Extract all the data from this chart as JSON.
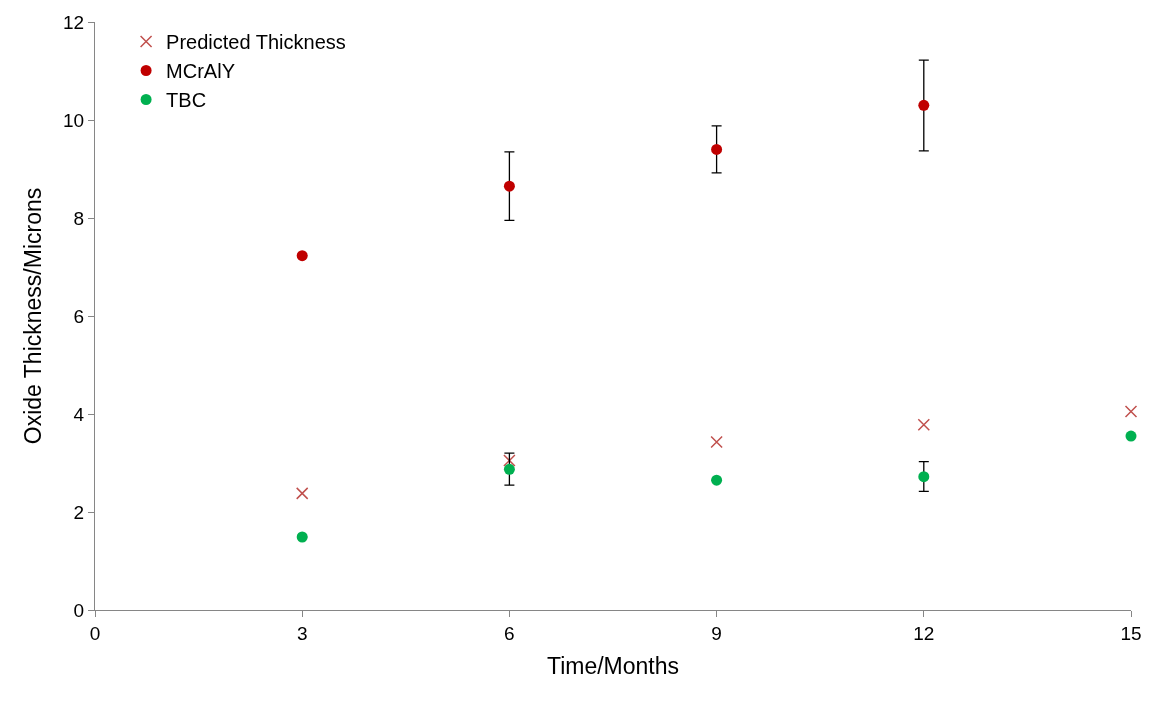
{
  "chart_data": {
    "type": "scatter",
    "xlabel": "Time/Months",
    "ylabel": "Oxide Thickness/Microns",
    "xlim": [
      0,
      15
    ],
    "xticks": [
      0,
      3,
      6,
      9,
      12,
      15
    ],
    "ylim": [
      0,
      12
    ],
    "yticks": [
      0,
      2,
      4,
      6,
      8,
      10,
      12
    ],
    "legend": "top left",
    "series": [
      {
        "name": "Predicted Thickness",
        "color": "#c0504d",
        "marker": "cross",
        "x": [
          3,
          6,
          9,
          12,
          15
        ],
        "values": [
          2.38,
          3.05,
          3.43,
          3.78,
          4.05
        ]
      },
      {
        "name": "MCrAlY",
        "color": "#c00000",
        "marker": "circle",
        "x": [
          3,
          6,
          9,
          12
        ],
        "values": [
          7.23,
          8.65,
          9.4,
          10.3
        ],
        "errors": [
          null,
          [
            7.95,
            9.35
          ],
          [
            8.92,
            9.88
          ],
          [
            9.37,
            11.22
          ]
        ]
      },
      {
        "name": "TBC",
        "color": "#00b050",
        "marker": "circle",
        "x": [
          3,
          6,
          9,
          12,
          15
        ],
        "values": [
          1.49,
          2.87,
          2.65,
          2.72,
          3.55
        ],
        "errors": [
          null,
          [
            2.55,
            3.2
          ],
          null,
          [
            2.42,
            3.03
          ],
          null
        ]
      }
    ]
  }
}
